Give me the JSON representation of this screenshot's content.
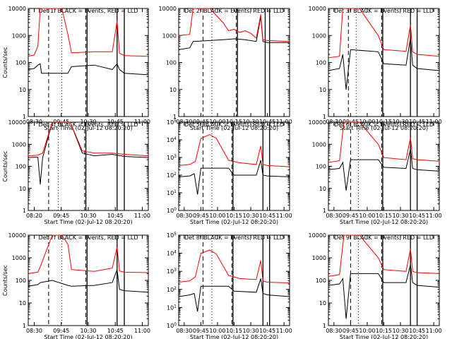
{
  "figure": {
    "time_axis_label": "Start Time (02-Jul-12 08:20:20)",
    "y_axis_label": "Counts/sec",
    "series_colors": {
      "events": "#000000",
      "lld": "#ff0000"
    },
    "x_tick_labels_wide": [
      "08:30",
      "09:45",
      "10:00",
      "10:15",
      "10:30",
      "10:45",
      "11:00"
    ],
    "x_tick_labels_left": [
      "08:30",
      "09:45",
      "10:30",
      "10:45",
      "11:00"
    ],
    "x_tick_labels_left_row2": [
      "08:20",
      "09:45",
      "10:30",
      "10:45",
      "11:00"
    ]
  },
  "chart_data": [
    {
      "type": "line",
      "title": "Det 1f BLACK = Events, RED = LLD",
      "ylabel": "Counts/sec",
      "xlabel": "Start Time (02-Jul-12 08:20:20)",
      "ylim": [
        1,
        10000
      ],
      "y_scale": "log",
      "y_tick_labels": [
        "1",
        "10",
        "100",
        "1000",
        "10000"
      ],
      "x_tick_labels": [
        "08:30",
        "09:45",
        "10:30",
        "10:45",
        "11:00"
      ],
      "series": [
        {
          "name": "Events",
          "color": "#000000",
          "x": [
            0.0,
            0.05,
            0.08,
            0.1,
            0.11,
            0.2,
            0.33,
            0.36,
            0.55,
            0.7,
            0.74,
            0.76,
            0.8,
            1.0
          ],
          "y": [
            55,
            60,
            80,
            90,
            40,
            40,
            40,
            70,
            80,
            55,
            90,
            55,
            40,
            35
          ]
        },
        {
          "name": "LLD",
          "color": "#ff0000",
          "x": [
            0.0,
            0.05,
            0.08,
            0.1,
            0.13,
            0.28,
            0.33,
            0.36,
            0.55,
            0.7,
            0.74,
            0.76,
            0.8,
            1.0
          ],
          "y": [
            170,
            190,
            400,
            12000,
            12000,
            12000,
            1100,
            230,
            250,
            250,
            3500,
            220,
            180,
            170
          ]
        }
      ],
      "markers": {
        "dashed": [
          0.17,
          0.48
        ],
        "dotted": [
          0.28
        ],
        "solid": [
          0.49,
          0.74,
          0.8
        ]
      }
    },
    {
      "type": "line",
      "title": "Det 2f BLACK = Events, RED = LLD",
      "ylabel": "",
      "xlabel": "Start Time (02-Jul-12 08:20:20)",
      "ylim": [
        1,
        10000
      ],
      "y_scale": "log",
      "y_tick_labels": [
        "1",
        "10",
        "100",
        "1000",
        "10000"
      ],
      "x_tick_labels": [
        "08:30",
        "09:45",
        "10:00",
        "10:15",
        "10:30",
        "10:45",
        "11:00"
      ],
      "series": [
        {
          "name": "Events",
          "color": "#000000",
          "x": [
            0.0,
            0.1,
            0.13,
            0.28,
            0.4,
            0.5,
            0.6,
            0.7,
            0.74,
            0.76,
            0.8,
            1.0
          ],
          "y": [
            300,
            350,
            600,
            650,
            700,
            750,
            700,
            600,
            5000,
            600,
            550,
            550
          ]
        },
        {
          "name": "LLD",
          "color": "#ff0000",
          "x": [
            0.0,
            0.1,
            0.13,
            0.28,
            0.4,
            0.45,
            0.5,
            0.55,
            0.6,
            0.65,
            0.7,
            0.74,
            0.76,
            0.8,
            1.0
          ],
          "y": [
            1000,
            1100,
            12000,
            12000,
            3000,
            1500,
            1700,
            1300,
            1500,
            1200,
            800,
            6000,
            700,
            650,
            600
          ]
        }
      ],
      "markers": {
        "dashed": [
          0.22,
          0.52
        ],
        "dotted": [
          0.3
        ],
        "solid": [
          0.53,
          0.78,
          0.82
        ]
      }
    },
    {
      "type": "line",
      "title": "Det 3f BLACK = Events, RED = LLD",
      "ylabel": "",
      "xlabel": "Start Time (02-Jul-12 08:20:20)",
      "ylim": [
        1,
        10000
      ],
      "y_scale": "log",
      "y_tick_labels": [
        "1",
        "10",
        "100",
        "1000",
        "10000"
      ],
      "x_tick_labels": [
        "08:30",
        "09:45",
        "10:00",
        "10:15",
        "10:30",
        "10:45",
        "11:00"
      ],
      "series": [
        {
          "name": "Events",
          "color": "#000000",
          "x": [
            0.0,
            0.1,
            0.13,
            0.16,
            0.2,
            0.45,
            0.5,
            0.7,
            0.74,
            0.76,
            0.8,
            1.0
          ],
          "y": [
            50,
            60,
            200,
            10,
            300,
            250,
            90,
            80,
            800,
            80,
            60,
            50
          ]
        },
        {
          "name": "LLD",
          "color": "#ff0000",
          "x": [
            0.0,
            0.1,
            0.13,
            0.28,
            0.45,
            0.5,
            0.7,
            0.74,
            0.76,
            0.8,
            1.0
          ],
          "y": [
            150,
            170,
            12000,
            12000,
            1000,
            300,
            260,
            2500,
            250,
            200,
            170
          ]
        }
      ],
      "markers": {
        "dashed": [
          0.18,
          0.48
        ],
        "dotted": [
          0.25
        ],
        "solid": [
          0.49,
          0.74,
          0.8
        ]
      }
    },
    {
      "type": "line",
      "title": "Det 4f BLACK = Events, RED = LLD",
      "ylabel": "Counts/sec",
      "xlabel": "Start Time (02-Jul-12 08:20:20)",
      "ylim": [
        1,
        10000
      ],
      "y_scale": "log",
      "y_tick_labels": [
        "1",
        "10",
        "100",
        "1000",
        "10000"
      ],
      "x_tick_labels": [
        "08:20",
        "09:45",
        "10:30",
        "10:45",
        "11:00"
      ],
      "series": [
        {
          "name": "Events",
          "color": "#000000",
          "x": [
            0.0,
            0.08,
            0.1,
            0.12,
            0.2,
            0.35,
            0.45,
            0.55,
            0.7,
            0.8,
            1.0
          ],
          "y": [
            250,
            260,
            15,
            250,
            12000,
            12000,
            400,
            300,
            350,
            280,
            250
          ]
        },
        {
          "name": "LLD",
          "color": "#ff0000",
          "x": [
            0.0,
            0.08,
            0.12,
            0.2,
            0.35,
            0.45,
            0.55,
            0.7,
            0.8,
            1.0
          ],
          "y": [
            300,
            320,
            400,
            12000,
            12000,
            500,
            400,
            400,
            350,
            300
          ]
        }
      ],
      "markers": {
        "dashed": [
          0.17,
          0.47
        ],
        "dotted": [
          0.25
        ],
        "solid": [
          0.48,
          0.74,
          0.8
        ]
      }
    },
    {
      "type": "line",
      "title": "Det 5f BLACK = Events, RED = LLD",
      "ylabel": "",
      "xlabel": "Start Time (02-Jul-12 08:20:20)",
      "ylim": [
        1,
        100000
      ],
      "y_scale": "log",
      "y_tick_labels": [
        "10^0",
        "10^1",
        "10^2",
        "10^3",
        "10^4",
        "10^5"
      ],
      "x_tick_labels": [
        "08:30",
        "09:45",
        "10:00",
        "10:15",
        "10:30",
        "10:45",
        "11:00"
      ],
      "series": [
        {
          "name": "Events",
          "color": "#000000",
          "x": [
            0.0,
            0.1,
            0.14,
            0.17,
            0.2,
            0.45,
            0.5,
            0.7,
            0.74,
            0.76,
            0.8,
            1.0
          ],
          "y": [
            80,
            90,
            120,
            8,
            250,
            250,
            100,
            100,
            700,
            100,
            90,
            80
          ]
        },
        {
          "name": "LLD",
          "color": "#ff0000",
          "x": [
            0.0,
            0.1,
            0.15,
            0.2,
            0.28,
            0.34,
            0.45,
            0.55,
            0.7,
            0.74,
            0.76,
            0.8,
            1.0
          ],
          "y": [
            350,
            400,
            600,
            12000,
            20000,
            12000,
            700,
            500,
            400,
            4500,
            400,
            350,
            300
          ]
        }
      ],
      "markers": {
        "dashed": [
          0.22,
          0.48
        ],
        "dotted": [
          0.3
        ],
        "solid": [
          0.49,
          0.76,
          0.82
        ]
      }
    },
    {
      "type": "line",
      "title": "Det 6f BLACK = Events, RED = LLD",
      "ylabel": "",
      "xlabel": "Start Time (02-Jul-12 08:20:20)",
      "ylim": [
        1,
        10000
      ],
      "y_scale": "log",
      "y_tick_labels": [
        "1",
        "10",
        "100",
        "1000",
        "10000"
      ],
      "x_tick_labels": [
        "08:30",
        "09:45",
        "10:00",
        "10:15",
        "10:30",
        "10:45",
        "11:00"
      ],
      "series": [
        {
          "name": "Events",
          "color": "#000000",
          "x": [
            0.0,
            0.1,
            0.13,
            0.16,
            0.2,
            0.45,
            0.5,
            0.7,
            0.74,
            0.76,
            0.8,
            1.0
          ],
          "y": [
            70,
            80,
            150,
            8,
            200,
            200,
            90,
            80,
            600,
            80,
            70,
            60
          ]
        },
        {
          "name": "LLD",
          "color": "#ff0000",
          "x": [
            0.0,
            0.1,
            0.14,
            0.28,
            0.45,
            0.5,
            0.7,
            0.74,
            0.76,
            0.8,
            1.0
          ],
          "y": [
            150,
            180,
            12000,
            12000,
            1000,
            250,
            200,
            2000,
            220,
            200,
            170
          ]
        }
      ],
      "markers": {
        "dashed": [
          0.2,
          0.48
        ],
        "dotted": [
          0.27
        ],
        "solid": [
          0.49,
          0.74,
          0.8
        ]
      }
    },
    {
      "type": "line",
      "title": "Det 7f BLACK = Events, RED = LLD",
      "ylabel": "Counts/sec",
      "xlabel": "Start Time (02-Jul-12 08:20:20)",
      "ylim": [
        1,
        10000
      ],
      "y_scale": "log",
      "y_tick_labels": [
        "1",
        "10",
        "100",
        "1000",
        "10000"
      ],
      "x_tick_labels": [
        "08:30",
        "09:45",
        "10:30",
        "10:45",
        "11:00"
      ],
      "series": [
        {
          "name": "Events",
          "color": "#000000",
          "x": [
            0.0,
            0.08,
            0.1,
            0.2,
            0.33,
            0.36,
            0.55,
            0.7,
            0.74,
            0.76,
            0.8,
            1.0
          ],
          "y": [
            55,
            65,
            80,
            100,
            60,
            55,
            60,
            80,
            300,
            40,
            35,
            30
          ]
        },
        {
          "name": "LLD",
          "color": "#ff0000",
          "x": [
            0.0,
            0.08,
            0.1,
            0.2,
            0.28,
            0.33,
            0.36,
            0.55,
            0.7,
            0.74,
            0.76,
            0.8,
            1.0
          ],
          "y": [
            200,
            230,
            400,
            12000,
            12000,
            4000,
            300,
            250,
            350,
            3000,
            260,
            230,
            220
          ]
        }
      ],
      "markers": {
        "dashed": [
          0.17,
          0.48
        ],
        "dotted": [
          0.28
        ],
        "solid": [
          0.49,
          0.74,
          0.8
        ]
      }
    },
    {
      "type": "line",
      "title": "Det 8f BLACK = Events, RED = LLD",
      "ylabel": "",
      "xlabel": "Start Time (02-Jul-12 08:20:20)",
      "ylim": [
        1,
        100000
      ],
      "y_scale": "log",
      "y_tick_labels": [
        "10^0",
        "10^1",
        "10^2",
        "10^3",
        "10^4",
        "10^5"
      ],
      "x_tick_labels": [
        "08:30",
        "09:45",
        "10:00",
        "10:15",
        "10:30",
        "10:45",
        "11:00"
      ],
      "series": [
        {
          "name": "Events",
          "color": "#000000",
          "x": [
            0.0,
            0.1,
            0.14,
            0.17,
            0.2,
            0.45,
            0.5,
            0.7,
            0.74,
            0.76,
            0.8,
            1.0
          ],
          "y": [
            40,
            50,
            60,
            6,
            150,
            150,
            80,
            70,
            400,
            60,
            50,
            40
          ]
        },
        {
          "name": "LLD",
          "color": "#ff0000",
          "x": [
            0.0,
            0.1,
            0.15,
            0.2,
            0.28,
            0.34,
            0.45,
            0.55,
            0.7,
            0.74,
            0.76,
            0.8,
            1.0
          ],
          "y": [
            250,
            300,
            500,
            10000,
            15000,
            9000,
            600,
            400,
            350,
            4000,
            300,
            250,
            230
          ]
        }
      ],
      "markers": {
        "dashed": [
          0.22,
          0.48
        ],
        "dotted": [
          0.3
        ],
        "solid": [
          0.49,
          0.76,
          0.82
        ]
      }
    },
    {
      "type": "line",
      "title": "Det 9f BLACK = Events, RED = LLD",
      "ylabel": "",
      "xlabel": "Start Time (02-Jul-12 08:20:20)",
      "ylim": [
        1,
        10000
      ],
      "y_scale": "log",
      "y_tick_labels": [
        "1",
        "10",
        "100",
        "1000",
        "10000"
      ],
      "x_tick_labels": [
        "08:30",
        "09:45",
        "10:00",
        "10:15",
        "10:30",
        "10:45",
        "11:00"
      ],
      "series": [
        {
          "name": "Events",
          "color": "#000000",
          "x": [
            0.0,
            0.1,
            0.13,
            0.16,
            0.2,
            0.45,
            0.5,
            0.7,
            0.74,
            0.76,
            0.8,
            1.0
          ],
          "y": [
            60,
            70,
            120,
            2,
            200,
            200,
            80,
            80,
            500,
            80,
            60,
            50
          ]
        },
        {
          "name": "LLD",
          "color": "#ff0000",
          "x": [
            0.0,
            0.1,
            0.14,
            0.28,
            0.45,
            0.5,
            0.7,
            0.74,
            0.76,
            0.8,
            1.0
          ],
          "y": [
            150,
            180,
            12000,
            12000,
            1000,
            300,
            250,
            2500,
            250,
            220,
            200
          ]
        }
      ],
      "markers": {
        "dashed": [
          0.2,
          0.48
        ],
        "dotted": [
          0.27
        ],
        "solid": [
          0.49,
          0.74,
          0.8
        ]
      }
    }
  ]
}
